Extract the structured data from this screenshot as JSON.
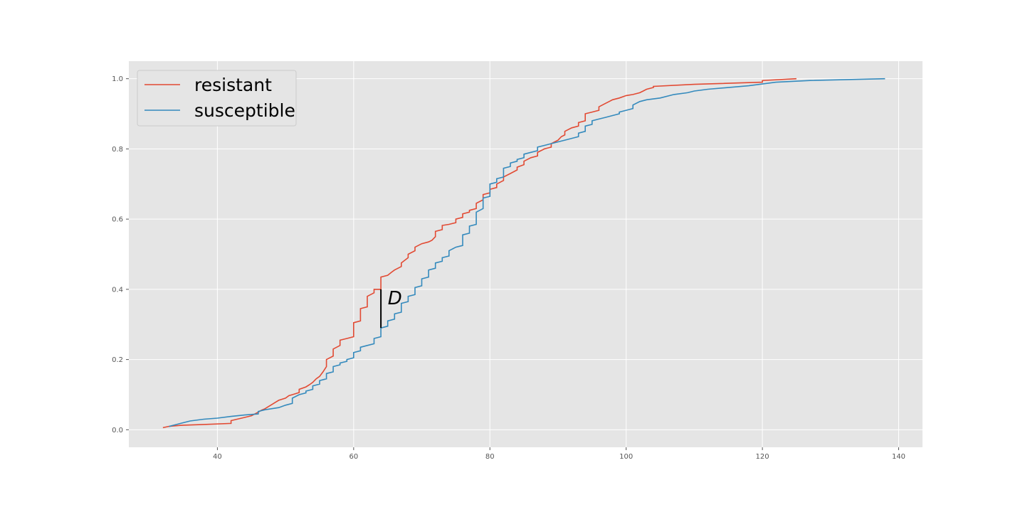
{
  "chart_data": {
    "type": "line",
    "title": "",
    "xlabel": "",
    "ylabel": "",
    "xlim": [
      27,
      143.5
    ],
    "ylim": [
      -0.05,
      1.05
    ],
    "xticks": [
      40,
      60,
      80,
      100,
      120,
      140
    ],
    "yticks": [
      0.0,
      0.2,
      0.4,
      0.6,
      0.8,
      1.0
    ],
    "xtick_labels": [
      "40",
      "60",
      "80",
      "100",
      "120",
      "140"
    ],
    "ytick_labels": [
      "0.0",
      "0.2",
      "0.4",
      "0.6",
      "0.8",
      "1.0"
    ],
    "grid": true,
    "legend_position": "top-left",
    "series": [
      {
        "name": "resistant",
        "color": "#E24A33",
        "points": [
          [
            32,
            0.006
          ],
          [
            33,
            0.01
          ],
          [
            35,
            0.013
          ],
          [
            38,
            0.015
          ],
          [
            42,
            0.018
          ],
          [
            42,
            0.026
          ],
          [
            44,
            0.035
          ],
          [
            45,
            0.04
          ],
          [
            46,
            0.05
          ],
          [
            46.5,
            0.056
          ],
          [
            47,
            0.06
          ],
          [
            47.5,
            0.066
          ],
          [
            48,
            0.072
          ],
          [
            48.5,
            0.078
          ],
          [
            49,
            0.084
          ],
          [
            50,
            0.09
          ],
          [
            50.5,
            0.097
          ],
          [
            51,
            0.1
          ],
          [
            52,
            0.106
          ],
          [
            52,
            0.115
          ],
          [
            53,
            0.122
          ],
          [
            53.5,
            0.128
          ],
          [
            54,
            0.135
          ],
          [
            54.5,
            0.145
          ],
          [
            55,
            0.152
          ],
          [
            55.5,
            0.165
          ],
          [
            56,
            0.18
          ],
          [
            56,
            0.2
          ],
          [
            57,
            0.21
          ],
          [
            57,
            0.23
          ],
          [
            58,
            0.24
          ],
          [
            58,
            0.255
          ],
          [
            59,
            0.26
          ],
          [
            60,
            0.265
          ],
          [
            60,
            0.305
          ],
          [
            61,
            0.31
          ],
          [
            61,
            0.345
          ],
          [
            62,
            0.35
          ],
          [
            62,
            0.38
          ],
          [
            63,
            0.39
          ],
          [
            63,
            0.4
          ],
          [
            64,
            0.4
          ],
          [
            64,
            0.435
          ],
          [
            65,
            0.44
          ],
          [
            65.5,
            0.448
          ],
          [
            66,
            0.455
          ],
          [
            67,
            0.465
          ],
          [
            67,
            0.475
          ],
          [
            68,
            0.49
          ],
          [
            68,
            0.5
          ],
          [
            69,
            0.51
          ],
          [
            69,
            0.52
          ],
          [
            70,
            0.53
          ],
          [
            71,
            0.535
          ],
          [
            71.5,
            0.54
          ],
          [
            72,
            0.55
          ],
          [
            72,
            0.565
          ],
          [
            73,
            0.57
          ],
          [
            73,
            0.582
          ],
          [
            74,
            0.585
          ],
          [
            75,
            0.59
          ],
          [
            75,
            0.6
          ],
          [
            76,
            0.605
          ],
          [
            76,
            0.615
          ],
          [
            77,
            0.62
          ],
          [
            77,
            0.625
          ],
          [
            78,
            0.63
          ],
          [
            78,
            0.645
          ],
          [
            79,
            0.655
          ],
          [
            79,
            0.67
          ],
          [
            80,
            0.675
          ],
          [
            80,
            0.685
          ],
          [
            81,
            0.69
          ],
          [
            81,
            0.7
          ],
          [
            82,
            0.71
          ],
          [
            82,
            0.72
          ],
          [
            83,
            0.73
          ],
          [
            84,
            0.74
          ],
          [
            84,
            0.748
          ],
          [
            85,
            0.755
          ],
          [
            85,
            0.765
          ],
          [
            86,
            0.775
          ],
          [
            87,
            0.78
          ],
          [
            87,
            0.79
          ],
          [
            88,
            0.8
          ],
          [
            89,
            0.805
          ],
          [
            89,
            0.815
          ],
          [
            90,
            0.825
          ],
          [
            90.5,
            0.835
          ],
          [
            91,
            0.84
          ],
          [
            91,
            0.85
          ],
          [
            92,
            0.86
          ],
          [
            93,
            0.865
          ],
          [
            93,
            0.875
          ],
          [
            94,
            0.88
          ],
          [
            94,
            0.9
          ],
          [
            95,
            0.905
          ],
          [
            96,
            0.91
          ],
          [
            96,
            0.92
          ],
          [
            97,
            0.93
          ],
          [
            97.5,
            0.935
          ],
          [
            98,
            0.94
          ],
          [
            99,
            0.945
          ],
          [
            100,
            0.952
          ],
          [
            101,
            0.955
          ],
          [
            102,
            0.96
          ],
          [
            102.5,
            0.965
          ],
          [
            103,
            0.97
          ],
          [
            104,
            0.975
          ],
          [
            104,
            0.978
          ],
          [
            110,
            0.984
          ],
          [
            120,
            0.99
          ],
          [
            120,
            0.995
          ],
          [
            125,
            1.0
          ]
        ]
      },
      {
        "name": "susceptible",
        "color": "#348ABD",
        "points": [
          [
            33,
            0.008
          ],
          [
            33,
            0.01
          ],
          [
            34,
            0.015
          ],
          [
            36,
            0.025
          ],
          [
            38,
            0.03
          ],
          [
            40,
            0.033
          ],
          [
            42,
            0.038
          ],
          [
            44,
            0.042
          ],
          [
            46,
            0.045
          ],
          [
            46,
            0.052
          ],
          [
            47,
            0.057
          ],
          [
            48,
            0.06
          ],
          [
            49,
            0.063
          ],
          [
            50,
            0.07
          ],
          [
            51,
            0.075
          ],
          [
            51,
            0.09
          ],
          [
            52,
            0.1
          ],
          [
            53,
            0.105
          ],
          [
            53,
            0.11
          ],
          [
            54,
            0.115
          ],
          [
            54,
            0.125
          ],
          [
            55,
            0.13
          ],
          [
            55,
            0.14
          ],
          [
            56,
            0.145
          ],
          [
            56,
            0.16
          ],
          [
            57,
            0.165
          ],
          [
            57,
            0.18
          ],
          [
            58,
            0.185
          ],
          [
            58,
            0.19
          ],
          [
            59,
            0.195
          ],
          [
            59,
            0.2
          ],
          [
            60,
            0.205
          ],
          [
            60,
            0.22
          ],
          [
            61,
            0.225
          ],
          [
            61,
            0.235
          ],
          [
            62,
            0.24
          ],
          [
            63,
            0.245
          ],
          [
            63,
            0.26
          ],
          [
            64,
            0.265
          ],
          [
            64,
            0.29
          ],
          [
            65,
            0.295
          ],
          [
            65,
            0.31
          ],
          [
            66,
            0.315
          ],
          [
            66,
            0.33
          ],
          [
            67,
            0.335
          ],
          [
            67,
            0.36
          ],
          [
            68,
            0.365
          ],
          [
            68,
            0.38
          ],
          [
            69,
            0.385
          ],
          [
            69,
            0.405
          ],
          [
            70,
            0.41
          ],
          [
            70,
            0.43
          ],
          [
            71,
            0.435
          ],
          [
            71,
            0.455
          ],
          [
            72,
            0.46
          ],
          [
            72,
            0.475
          ],
          [
            73,
            0.48
          ],
          [
            73,
            0.49
          ],
          [
            74,
            0.495
          ],
          [
            74,
            0.51
          ],
          [
            75,
            0.52
          ],
          [
            75,
            0.52
          ],
          [
            76,
            0.525
          ],
          [
            76,
            0.555
          ],
          [
            77,
            0.56
          ],
          [
            77,
            0.58
          ],
          [
            78,
            0.585
          ],
          [
            78,
            0.62
          ],
          [
            79,
            0.63
          ],
          [
            79,
            0.66
          ],
          [
            80,
            0.665
          ],
          [
            80,
            0.7
          ],
          [
            81,
            0.705
          ],
          [
            81,
            0.715
          ],
          [
            82,
            0.72
          ],
          [
            82,
            0.745
          ],
          [
            83,
            0.75
          ],
          [
            83,
            0.76
          ],
          [
            84,
            0.765
          ],
          [
            84,
            0.77
          ],
          [
            85,
            0.775
          ],
          [
            85,
            0.785
          ],
          [
            86,
            0.79
          ],
          [
            87,
            0.795
          ],
          [
            87,
            0.805
          ],
          [
            88,
            0.81
          ],
          [
            89,
            0.815
          ],
          [
            90,
            0.82
          ],
          [
            91,
            0.825
          ],
          [
            92,
            0.83
          ],
          [
            93,
            0.835
          ],
          [
            93,
            0.845
          ],
          [
            94,
            0.85
          ],
          [
            94,
            0.865
          ],
          [
            95,
            0.87
          ],
          [
            95,
            0.88
          ],
          [
            96,
            0.885
          ],
          [
            97,
            0.89
          ],
          [
            98,
            0.895
          ],
          [
            99,
            0.9
          ],
          [
            99,
            0.905
          ],
          [
            100,
            0.91
          ],
          [
            101,
            0.915
          ],
          [
            101,
            0.925
          ],
          [
            102,
            0.935
          ],
          [
            103,
            0.94
          ],
          [
            105,
            0.945
          ],
          [
            107,
            0.955
          ],
          [
            109,
            0.96
          ],
          [
            110,
            0.965
          ],
          [
            112,
            0.97
          ],
          [
            118,
            0.98
          ],
          [
            122,
            0.99
          ],
          [
            127,
            0.995
          ],
          [
            138,
            1.0
          ]
        ]
      }
    ],
    "annotations": [
      {
        "text": "D",
        "x": 65,
        "y": 0.375
      },
      {
        "type": "segment",
        "x": 64,
        "y0": 0.29,
        "y1": 0.4
      }
    ]
  }
}
